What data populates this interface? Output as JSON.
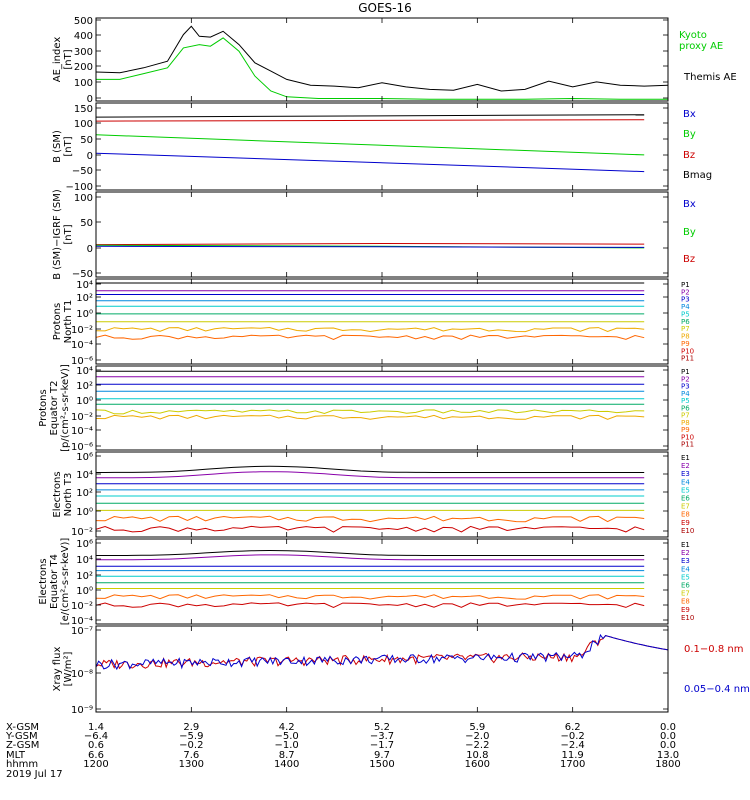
{
  "title": "GOES-16",
  "colors": {
    "black": "#000000",
    "green": "#00cc00",
    "blue": "#0000cc",
    "red": "#cc0000",
    "cyan": "#00bbdd",
    "yellow": "#cccc00",
    "orange": "#ff8800",
    "magenta": "#aa00aa"
  },
  "panels": [
    {
      "id": "ae",
      "ylabel": [
        "AE_index",
        "[nT]"
      ],
      "yticks": [
        "500",
        "400",
        "300",
        "200",
        "100",
        "0"
      ],
      "legend": [
        {
          "text": "Kyoto",
          "color": "#00cc00"
        },
        {
          "text": "proxy AE",
          "color": "#00cc00"
        },
        {
          "text": "Themis AE",
          "color": "#000000"
        }
      ]
    },
    {
      "id": "bsm",
      "ylabel": [
        "B (SM)",
        "[nT]"
      ],
      "yticks": [
        "150",
        "100",
        "50",
        "0",
        "−50",
        "−100"
      ],
      "legend": [
        {
          "text": "Bx",
          "color": "#0000cc"
        },
        {
          "text": "By",
          "color": "#00cc00"
        },
        {
          "text": "Bz",
          "color": "#cc0000"
        },
        {
          "text": "Bmag",
          "color": "#000000"
        }
      ]
    },
    {
      "id": "bigrf",
      "ylabel": [
        "B (SM)−IGRF (SM)",
        "[nT]"
      ],
      "yticks": [
        "100",
        "50",
        "0",
        "−50"
      ],
      "legend": [
        {
          "text": "Bx",
          "color": "#0000cc"
        },
        {
          "text": "By",
          "color": "#00cc00"
        },
        {
          "text": "Bz",
          "color": "#cc0000"
        }
      ]
    },
    {
      "id": "pnt1",
      "ylabel": [
        "Protons",
        "North T1"
      ],
      "yticks": [
        "10⁴",
        "10²",
        "10⁰",
        "10⁻²",
        "10⁻⁴",
        "10⁻⁶"
      ],
      "legend": [
        {
          "text": "P1",
          "color": "#000000"
        },
        {
          "text": "P2",
          "color": "#8800aa"
        },
        {
          "text": "P3",
          "color": "#0000cc"
        },
        {
          "text": "P4",
          "color": "#0088dd"
        },
        {
          "text": "P5",
          "color": "#00cccc"
        },
        {
          "text": "P6",
          "color": "#00aa66"
        },
        {
          "text": "P7",
          "color": "#cccc00"
        },
        {
          "text": "P8",
          "color": "#eeaa00"
        },
        {
          "text": "P9",
          "color": "#ff6600"
        },
        {
          "text": "P10",
          "color": "#cc0000"
        },
        {
          "text": "P11",
          "color": "#aa0000"
        }
      ]
    },
    {
      "id": "pet2",
      "ylabel": [
        "Protons",
        "Equator T2",
        "[p/(cm²-s-sr-keV)]"
      ],
      "yticks": [
        "10⁴",
        "10²",
        "10⁰",
        "10⁻²",
        "10⁻⁴",
        "10⁻⁶"
      ],
      "legend": [
        {
          "text": "P1",
          "color": "#000000"
        },
        {
          "text": "P2",
          "color": "#8800aa"
        },
        {
          "text": "P3",
          "color": "#0000cc"
        },
        {
          "text": "P4",
          "color": "#0088dd"
        },
        {
          "text": "P5",
          "color": "#00cccc"
        },
        {
          "text": "P6",
          "color": "#00aa66"
        },
        {
          "text": "P7",
          "color": "#cccc00"
        },
        {
          "text": "P8",
          "color": "#eeaa00"
        },
        {
          "text": "P9",
          "color": "#ff6600"
        },
        {
          "text": "P10",
          "color": "#cc0000"
        },
        {
          "text": "P11",
          "color": "#aa0000"
        }
      ]
    },
    {
      "id": "ent3",
      "ylabel": [
        "Electrons",
        "North T3"
      ],
      "yticks": [
        "10⁶",
        "10⁴",
        "10²",
        "10⁰",
        "10⁻²"
      ],
      "legend": [
        {
          "text": "E1",
          "color": "#000000"
        },
        {
          "text": "E2",
          "color": "#8800aa"
        },
        {
          "text": "E3",
          "color": "#0000cc"
        },
        {
          "text": "E4",
          "color": "#0088dd"
        },
        {
          "text": "E5",
          "color": "#00cccc"
        },
        {
          "text": "E6",
          "color": "#00aa66"
        },
        {
          "text": "E7",
          "color": "#cccc00"
        },
        {
          "text": "E8",
          "color": "#ff6600"
        },
        {
          "text": "E9",
          "color": "#cc0000"
        },
        {
          "text": "E10",
          "color": "#aa0000"
        }
      ]
    },
    {
      "id": "eet4",
      "ylabel": [
        "Electrons",
        "Equator T4",
        "[e/(cm²-s-sr-keV)]"
      ],
      "yticks": [
        "10⁶",
        "10⁴",
        "10²",
        "10⁰",
        "10⁻²",
        "10⁻⁴"
      ],
      "legend": [
        {
          "text": "E1",
          "color": "#000000"
        },
        {
          "text": "E2",
          "color": "#8800aa"
        },
        {
          "text": "E3",
          "color": "#0000cc"
        },
        {
          "text": "E4",
          "color": "#0088dd"
        },
        {
          "text": "E5",
          "color": "#00cccc"
        },
        {
          "text": "E6",
          "color": "#00aa66"
        },
        {
          "text": "E7",
          "color": "#cccc00"
        },
        {
          "text": "E8",
          "color": "#ff6600"
        },
        {
          "text": "E9",
          "color": "#cc0000"
        },
        {
          "text": "E10",
          "color": "#aa0000"
        }
      ]
    },
    {
      "id": "xray",
      "ylabel": [
        "Xray flux",
        "[W/m²]"
      ],
      "yticks": [
        "10⁻⁷",
        "10⁻⁸",
        "10⁻⁹"
      ],
      "legend": [
        {
          "text": "0.1−0.8 nm",
          "color": "#cc0000"
        },
        {
          "text": "0.05−0.4 nm",
          "color": "#0000cc"
        }
      ]
    }
  ],
  "footer": {
    "row_labels": [
      "X-GSM",
      "Y-GSM",
      "Z-GSM",
      "MLT",
      "hhmm",
      "2019 Jul 17"
    ],
    "columns": [
      [
        "1.4",
        "−6.4",
        "0.6",
        "6.6",
        "1200"
      ],
      [
        "2.9",
        "−5.9",
        "−0.2",
        "7.6",
        "1300"
      ],
      [
        "4.2",
        "−5.0",
        "−1.0",
        "8.7",
        "1400"
      ],
      [
        "5.2",
        "−3.7",
        "−1.7",
        "9.7",
        "1500"
      ],
      [
        "5.9",
        "−2.0",
        "−2.2",
        "10.8",
        "1600"
      ],
      [
        "6.2",
        "−0.2",
        "−2.4",
        "11.9",
        "1700"
      ],
      [
        "0.0",
        "0.0",
        "0.0",
        "13.0",
        "1800"
      ]
    ]
  },
  "chart_data": {
    "type": "line",
    "title": "GOES-16",
    "x_unit": "hhmm",
    "x": [
      1200,
      1300,
      1400,
      1500,
      1600,
      1700,
      1800
    ],
    "panels": [
      {
        "name": "AE_index",
        "ylim": [
          0,
          500
        ],
        "series": [
          {
            "name": "Themis AE",
            "color": "#000000",
            "x": [
              1200,
              1215,
              1230,
              1245,
              1255,
              1300,
              1305,
              1312,
              1320,
              1330,
              1340,
              1350,
              1400,
              1415,
              1430,
              1445,
              1500,
              1515,
              1530,
              1545,
              1600,
              1615,
              1630,
              1645,
              1700,
              1715,
              1730,
              1745,
              1800
            ],
            "y": [
              175,
              170,
              200,
              240,
              400,
              450,
              390,
              385,
              420,
              340,
              230,
              180,
              130,
              95,
              90,
              80,
              110,
              85,
              70,
              65,
              100,
              60,
              70,
              120,
              85,
              115,
              95,
              90,
              95
            ]
          },
          {
            "name": "Kyoto proxy AE",
            "color": "#00cc00",
            "x": [
              1200,
              1215,
              1230,
              1245,
              1255,
              1305,
              1312,
              1320,
              1330,
              1340,
              1350,
              1400,
              1420,
              1440,
              1500,
              1530,
              1600,
              1630,
              1700,
              1730,
              1800
            ],
            "y": [
              130,
              130,
              165,
              200,
              320,
              340,
              330,
              380,
              300,
              150,
              60,
              25,
              15,
              15,
              15,
              10,
              10,
              10,
              15,
              10,
              10
            ]
          }
        ]
      },
      {
        "name": "B (SM)",
        "ylim": [
          -110,
          150
        ],
        "series": [
          {
            "name": "Bmag",
            "color": "#000000",
            "x": [
              1200,
              1745
            ],
            "y": [
              108,
              115
            ]
          },
          {
            "name": "Bz",
            "color": "#cc0000",
            "x": [
              1200,
              1745
            ],
            "y": [
              96,
              100
            ]
          },
          {
            "name": "By",
            "color": "#00cc00",
            "x": [
              1200,
              1745
            ],
            "y": [
              55,
              -5
            ]
          },
          {
            "name": "Bx",
            "color": "#0000cc",
            "x": [
              1200,
              1745
            ],
            "y": [
              0,
              -55
            ]
          }
        ]
      },
      {
        "name": "B (SM)−IGRF (SM)",
        "ylim": [
          -55,
          100
        ],
        "series": [
          {
            "name": "Bz",
            "color": "#cc0000",
            "x": [
              1200,
              1500,
              1745
            ],
            "y": [
              4,
              6,
              5
            ]
          },
          {
            "name": "By",
            "color": "#00cc00",
            "x": [
              1200,
              1500,
              1745
            ],
            "y": [
              3,
              1,
              -2
            ]
          },
          {
            "name": "Bx",
            "color": "#0000cc",
            "x": [
              1200,
              1500,
              1745
            ],
            "y": [
              1,
              0,
              -1
            ]
          }
        ]
      },
      {
        "name": "Protons North T1",
        "scale": "log",
        "ylim": [
          1e-07,
          10000.0
        ],
        "levels": [
          [
            "P1",
            3000
          ],
          [
            "P2",
            300
          ],
          [
            "P3",
            100
          ],
          [
            "P4",
            15
          ],
          [
            "P5",
            3
          ],
          [
            "P6",
            0.3
          ],
          [
            "P7",
            0.03
          ],
          [
            "P8",
            0.003
          ],
          [
            "P9",
            0.0003
          ]
        ]
      },
      {
        "name": "Protons Equator T2",
        "scale": "log",
        "ylim": [
          1e-07,
          10000.0
        ],
        "levels": [
          [
            "P1",
            2000
          ],
          [
            "P2",
            400
          ],
          [
            "P3",
            40
          ],
          [
            "P4",
            5
          ],
          [
            "P5",
            0.5
          ],
          [
            "P6",
            0.1
          ],
          [
            "P7",
            0.01
          ],
          [
            "P8",
            0.002
          ]
        ]
      },
      {
        "name": "Electrons North T3",
        "scale": "log",
        "ylim": [
          0.005,
          1000000.0
        ],
        "levels": [
          [
            "E1",
            10000
          ],
          [
            "E2",
            3000
          ],
          [
            "E3",
            800
          ],
          [
            "E4",
            200
          ],
          [
            "E5",
            50
          ],
          [
            "E6",
            10
          ],
          [
            "E7",
            2
          ],
          [
            "E8",
            0.3
          ],
          [
            "E9",
            0.03
          ]
        ]
      },
      {
        "name": "Electrons Equator T4",
        "scale": "log",
        "ylim": [
          5e-05,
          1000000.0
        ],
        "levels": [
          [
            "E1",
            10000
          ],
          [
            "E2",
            3000
          ],
          [
            "E3",
            500
          ],
          [
            "E4",
            150
          ],
          [
            "E5",
            30
          ],
          [
            "E6",
            5
          ],
          [
            "E7",
            1
          ],
          [
            "E8",
            0.1
          ],
          [
            "E9",
            0.01
          ]
        ]
      },
      {
        "name": "Xray flux",
        "scale": "log",
        "ylim": [
          1e-09,
          1e-07
        ],
        "series": [
          {
            "name": "0.1−0.8 nm",
            "color": "#cc0000"
          },
          {
            "name": "0.05−0.4 nm",
            "color": "#0000cc"
          }
        ]
      }
    ]
  }
}
